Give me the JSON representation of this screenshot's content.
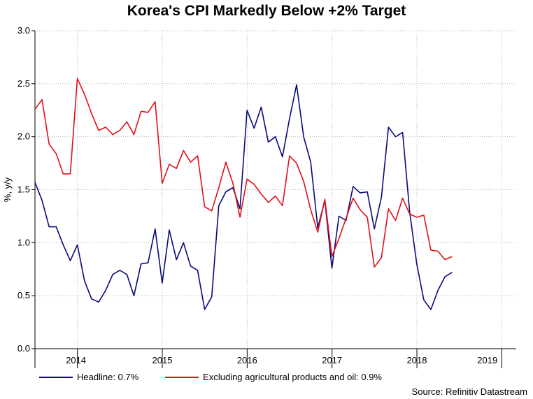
{
  "chart_data": {
    "type": "line",
    "title": "Korea's CPI Markedly Below +2% Target",
    "ylabel": "%, y/y",
    "xlabel": "",
    "ylim": [
      0.0,
      3.0
    ],
    "yticks": [
      "0.0",
      "0.5",
      "1.0",
      "1.5",
      "2.0",
      "2.5",
      "3.0"
    ],
    "xlim": [
      2013.5,
      2019.17
    ],
    "year_labels": [
      {
        "label": "2014",
        "x": 2014.0
      },
      {
        "label": "2015",
        "x": 2015.0
      },
      {
        "label": "2016",
        "x": 2016.0
      },
      {
        "label": "2017",
        "x": 2017.0
      },
      {
        "label": "2018",
        "x": 2018.0
      },
      {
        "label": "2019",
        "x": 2018.83
      }
    ],
    "year_boundaries": [
      2014.0,
      2015.0,
      2016.0,
      2017.0,
      2018.0,
      2019.0
    ],
    "x_start": 2013.5,
    "x_step": 0.0833,
    "series": [
      {
        "name": "Headline: 0.7%",
        "color": "#0a0a78",
        "values": [
          1.57,
          1.4,
          1.15,
          1.15,
          0.98,
          0.83,
          0.98,
          0.64,
          0.47,
          0.44,
          0.55,
          0.7,
          0.74,
          0.7,
          0.5,
          0.8,
          0.81,
          1.13,
          0.62,
          1.12,
          0.84,
          1.0,
          0.78,
          0.74,
          0.37,
          0.49,
          1.35,
          1.48,
          1.52,
          1.32,
          2.25,
          2.08,
          2.28,
          1.95,
          2.0,
          1.81,
          2.17,
          2.49,
          2.0,
          1.76,
          1.14,
          1.4,
          0.76,
          1.25,
          1.21,
          1.53,
          1.47,
          1.48,
          1.13,
          1.43,
          2.09,
          2.0,
          2.04,
          1.29,
          0.8,
          0.46,
          0.37,
          0.55,
          0.68,
          0.72
        ]
      },
      {
        "name": "Excluding agricultural products and oil: 0.9%",
        "color": "#e0101a",
        "values": [
          2.26,
          2.35,
          1.93,
          1.84,
          1.65,
          1.65,
          2.55,
          2.4,
          2.22,
          2.06,
          2.09,
          2.02,
          2.06,
          2.14,
          2.02,
          2.24,
          2.23,
          2.33,
          1.56,
          1.74,
          1.7,
          1.87,
          1.76,
          1.82,
          1.34,
          1.3,
          1.52,
          1.76,
          1.56,
          1.24,
          1.6,
          1.55,
          1.46,
          1.38,
          1.44,
          1.35,
          1.82,
          1.75,
          1.58,
          1.31,
          1.1,
          1.41,
          0.87,
          1.04,
          1.23,
          1.42,
          1.31,
          1.24,
          0.77,
          0.86,
          1.32,
          1.21,
          1.42,
          1.27,
          1.24,
          1.26,
          0.93,
          0.92,
          0.84,
          0.87
        ]
      }
    ]
  },
  "legend": {
    "headline": "Headline: 0.7%",
    "core": "Excluding agricultural products and oil: 0.9%"
  },
  "source": "Source: Refinitiv Datastream"
}
